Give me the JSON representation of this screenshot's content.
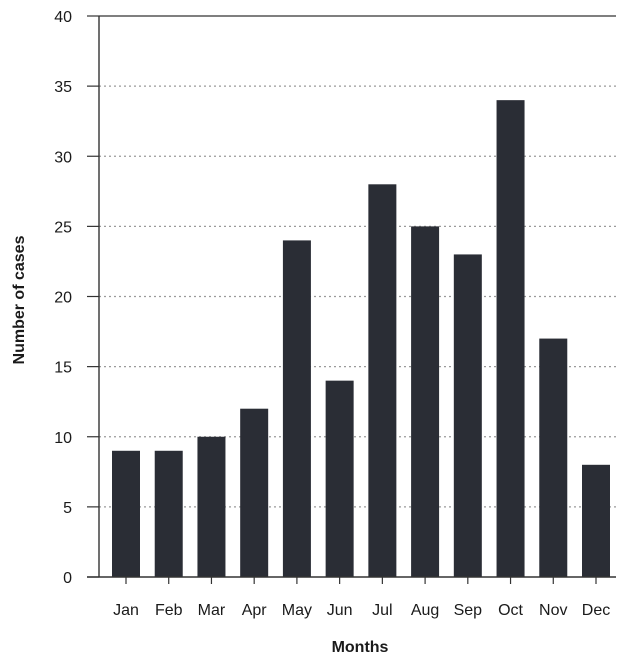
{
  "chart_data": {
    "type": "bar",
    "categories": [
      "Jan",
      "Feb",
      "Mar",
      "Apr",
      "May",
      "Jun",
      "Jul",
      "Aug",
      "Sep",
      "Oct",
      "Nov",
      "Dec"
    ],
    "values": [
      9,
      9,
      10,
      12,
      24,
      14,
      28,
      25,
      23,
      34,
      17,
      8
    ],
    "xlabel": "Months",
    "ylabel": "Number of cases",
    "ylim": [
      0,
      40
    ],
    "yticks": [
      0,
      5,
      10,
      15,
      20,
      25,
      30,
      35,
      40
    ],
    "grid": "horizontal dotted",
    "colors": {
      "bar": "#2a2d35",
      "grid": "#9a9a9a",
      "axis": "#333333"
    }
  }
}
